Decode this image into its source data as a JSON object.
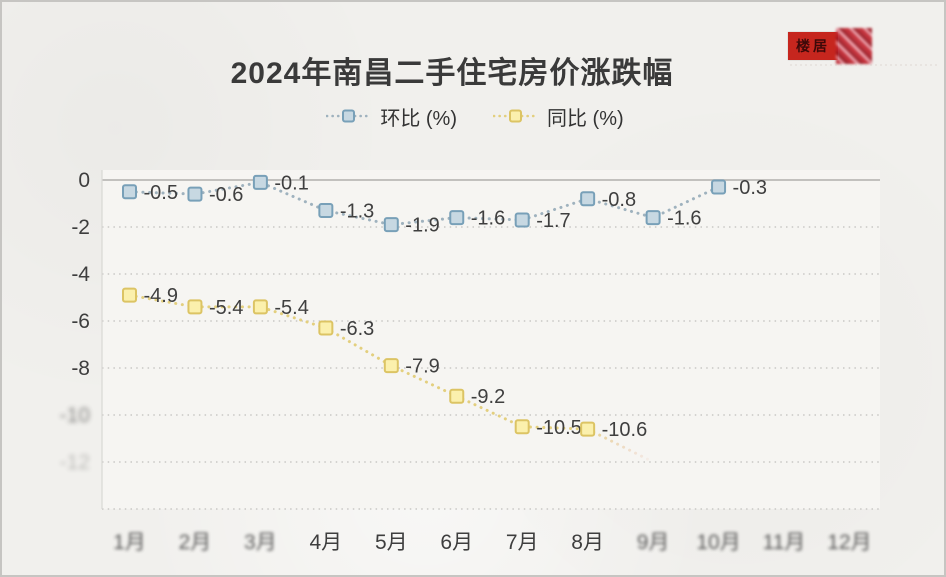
{
  "header": {
    "title": "2024年南昌二手住宅房价涨跌幅"
  },
  "logo": {
    "text": "楼居"
  },
  "colors": {
    "page_bg": "#f1f0ed",
    "plot_bg": "#f6f5f2",
    "grid": "#c9c8c5",
    "zero_line": "#c2c1be",
    "axis_text": "#3e3e3e",
    "title_text": "#3a3a3a",
    "logo_red": "#c6261e"
  },
  "chart_data": {
    "type": "line",
    "title": "2024年南昌二手住宅房价涨跌幅",
    "categories": [
      "1月",
      "2月",
      "3月",
      "4月",
      "5月",
      "6月",
      "7月",
      "8月",
      "9月",
      "10月",
      "11月",
      "12月"
    ],
    "garbled_category_indexes": [
      0,
      1,
      2,
      8,
      9,
      10,
      11
    ],
    "yticks": [
      0,
      -2,
      -4,
      -6,
      -8,
      -10,
      -12,
      -14
    ],
    "ytick_labels": [
      "0",
      "-2",
      "-4",
      "-6",
      "-8",
      "-10",
      "-12",
      ""
    ],
    "garbled_ytick_indexes": [
      5,
      6
    ],
    "ylim": [
      -14,
      0
    ],
    "grid": "horizontal-dotted",
    "legend_position": "top-center",
    "series": [
      {
        "name": "环比 (%)",
        "x_months": [
          1,
          2,
          3,
          4,
          5,
          6,
          7,
          8,
          9,
          10
        ],
        "values": [
          -0.5,
          -0.6,
          -0.1,
          -1.3,
          -1.9,
          -1.6,
          -1.7,
          -0.8,
          -1.6,
          -0.3
        ],
        "labels": [
          "-0.5",
          "-0.6",
          "-0.1",
          "-1.3",
          "-1.9",
          "-1.6",
          "-1.7",
          "-0.8",
          "-1.6",
          "-0.3"
        ],
        "marker_fill": "#c7d8e2",
        "marker_stroke": "#78a0b8",
        "line_color": "#9fb2be"
      },
      {
        "name": "同比 (%)",
        "x_months": [
          1,
          2,
          3,
          4,
          5,
          6,
          7,
          8
        ],
        "values": [
          -4.9,
          -5.4,
          -5.4,
          -6.3,
          -7.9,
          -9.2,
          -10.5,
          -10.6
        ],
        "labels": [
          "-4.9",
          "-5.4",
          "-5.4",
          "-6.3",
          "-7.9",
          "-9.2",
          "-10.5",
          "-10.6"
        ],
        "fade_tail": {
          "month": 9,
          "value": -12.0
        },
        "marker_fill": "#fbf0ad",
        "marker_stroke": "#dcc464",
        "line_color": "#e3cf7e"
      }
    ]
  }
}
